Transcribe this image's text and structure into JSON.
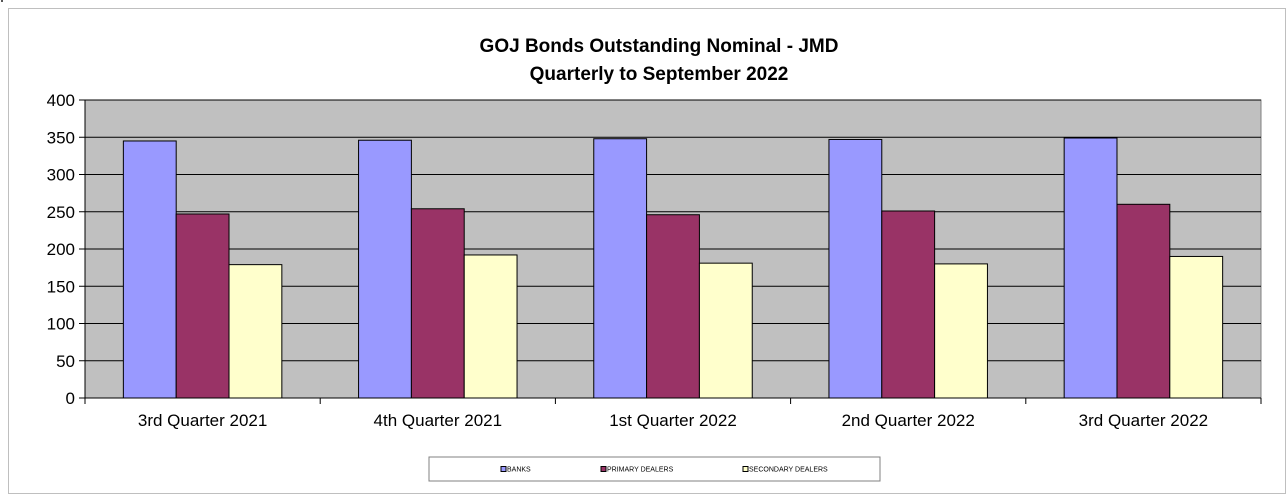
{
  "chart_data": {
    "type": "bar",
    "title": "GOJ Bonds Outstanding Nominal - JMD",
    "subtitle": "Quarterly to September 2022",
    "categories": [
      "3rd Quarter 2021",
      "4th Quarter 2021",
      "1st Quarter 2022",
      "2nd Quarter 2022",
      "3rd Quarter 2022"
    ],
    "series": [
      {
        "name": "BANKS",
        "values": [
          345,
          346,
          348,
          347,
          349
        ],
        "color": "#9999ff"
      },
      {
        "name": "PRIMARY DEALERS",
        "values": [
          247,
          254,
          246,
          251,
          260
        ],
        "color": "#993366"
      },
      {
        "name": "SECONDARY DEALERS",
        "values": [
          179,
          192,
          181,
          180,
          190
        ],
        "color": "#ffffcc"
      }
    ],
    "ylim": [
      0,
      400
    ],
    "yticks": [
      0,
      50,
      100,
      150,
      200,
      250,
      300,
      350,
      400
    ],
    "xlabel": "",
    "ylabel": "",
    "grid": true,
    "plot_background": "#c0c0c0",
    "legend_position": "bottom"
  }
}
